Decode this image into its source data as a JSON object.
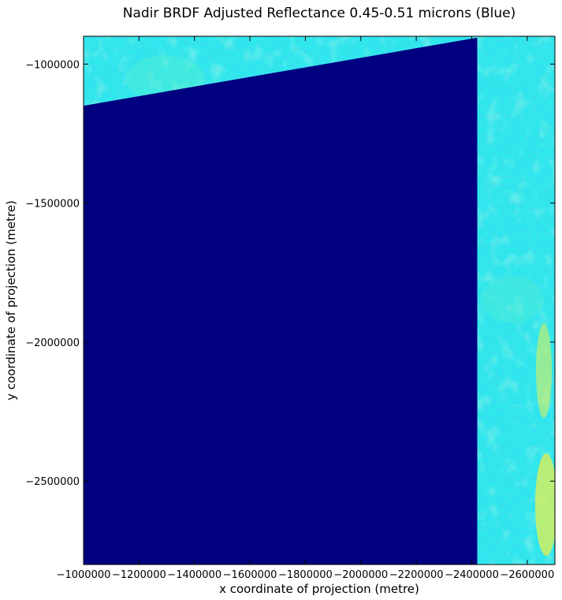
{
  "chart_data": {
    "type": "heatmap",
    "title": "Nadir BRDF Adjusted Reflectance 0.45-0.51 microns (Blue)",
    "xlabel": "x coordinate of projection (metre)",
    "ylabel": "y coordinate of projection (metre)",
    "xlim": [
      -1000000,
      -2700000
    ],
    "ylim": [
      -900000,
      -2800000
    ],
    "x_ticks": [
      -1000000,
      -1200000,
      -1400000,
      -1600000,
      -1800000,
      -2000000,
      -2200000,
      -2400000,
      -2600000
    ],
    "y_ticks": [
      -1000000,
      -1500000,
      -2000000,
      -2500000
    ],
    "x_tick_labels": [
      "−1000000",
      "−1200000",
      "−1400000",
      "−1600000",
      "−1800000",
      "−2000000",
      "−2200000",
      "−2400000",
      "−2600000"
    ],
    "y_tick_labels": [
      "−1000000",
      "−1500000",
      "−2000000",
      "−2500000"
    ],
    "colormap": "jet",
    "colors": {
      "background_fill": "#2ee8ec",
      "no_data_fill": "#000080",
      "lighter_patch": "#5cf0c8",
      "darker_patch": "#18c0f4",
      "yellow_patch": "#e6f050"
    },
    "no_data_region": "lower-left wedge (swath edge) below a line from about (-1000000, -1150000) to (-2420000, -905000)",
    "grid": false,
    "legend": "none"
  }
}
